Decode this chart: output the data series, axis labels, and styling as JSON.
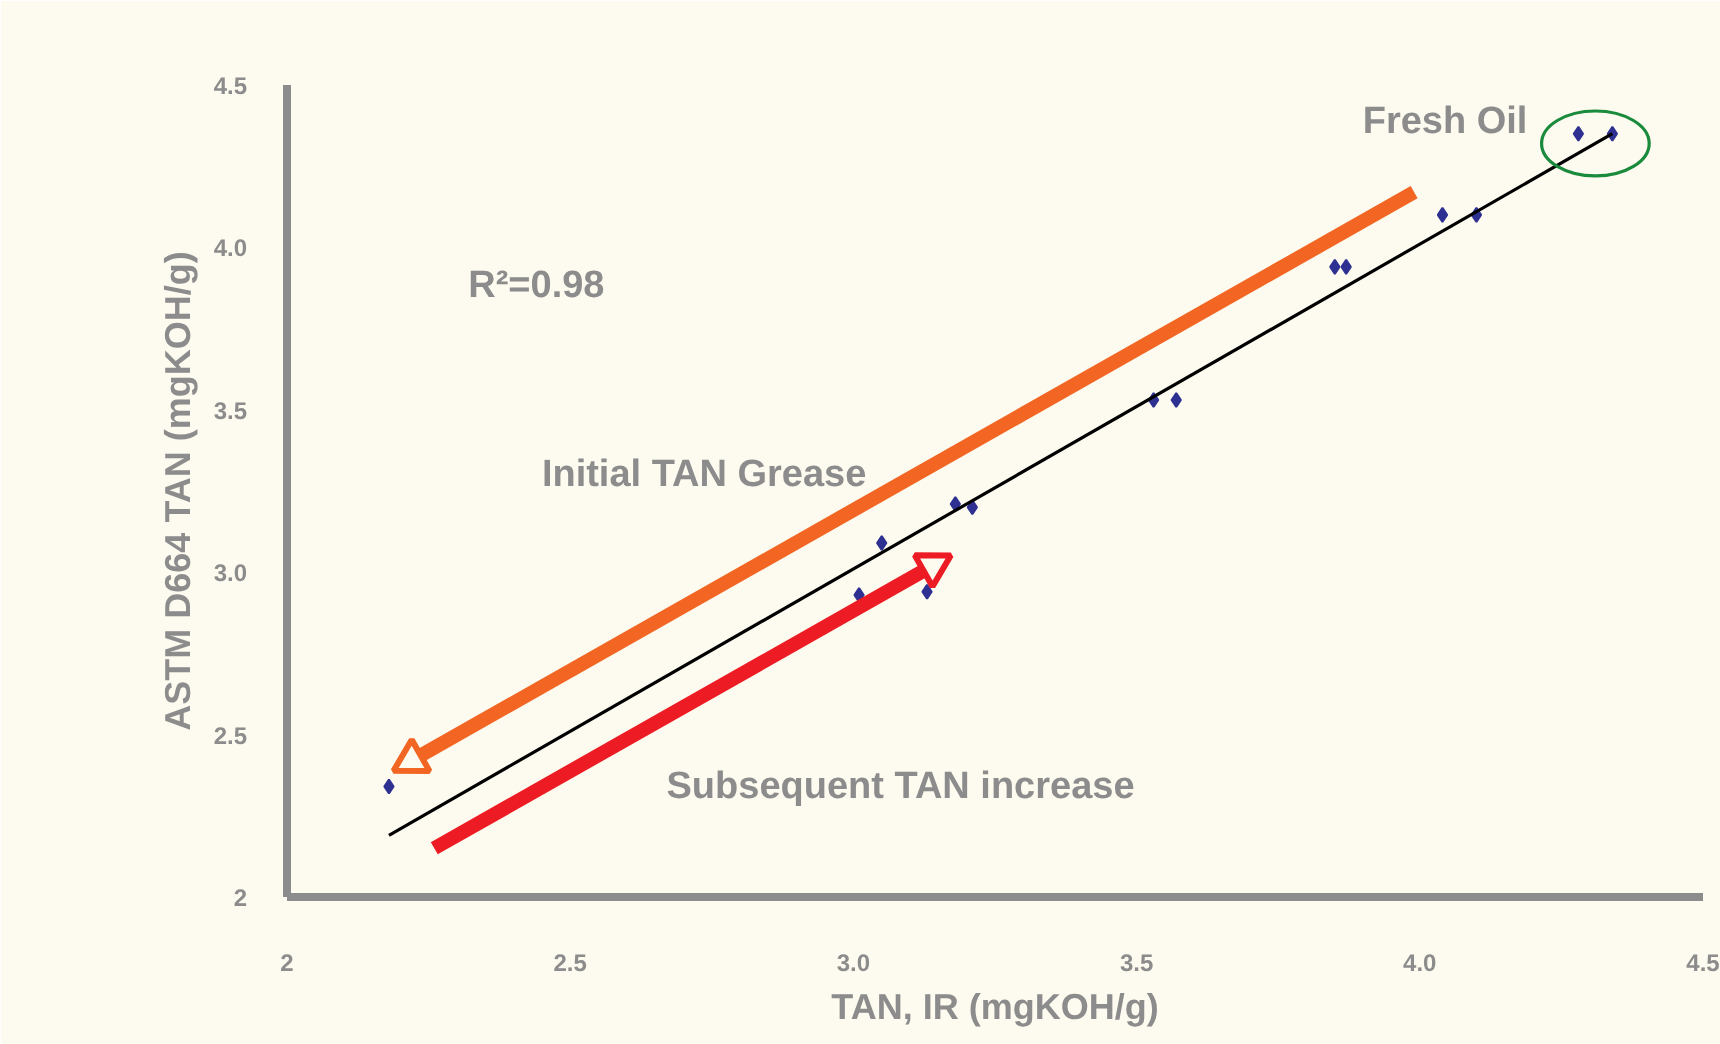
{
  "chart_data": {
    "type": "scatter",
    "xlabel": "TAN, IR (mgKOH/g)",
    "ylabel": "ASTM D664 TAN (mgKOH/g)",
    "xlim": [
      2,
      4.5
    ],
    "ylim": [
      2,
      4.5
    ],
    "xticks": [
      2,
      2.5,
      {
        "value": 3,
        "label": "3.0"
      },
      3.5,
      {
        "value": 4,
        "label": "4.0"
      },
      4.5
    ],
    "yticks": [
      2,
      2.5,
      {
        "value": 3,
        "label": "3.0"
      },
      3.5,
      {
        "value": 4,
        "label": "4.0"
      },
      4.5
    ],
    "grid": false,
    "series": [
      {
        "marker": "diamond",
        "color": "#2e3192",
        "x": [
          2.18,
          3.01,
          3.05,
          3.13,
          3.18,
          3.21,
          3.53,
          3.57,
          3.85,
          3.87,
          4.04,
          4.1,
          4.28,
          4.34
        ],
        "values": [
          2.34,
          2.93,
          3.09,
          2.94,
          3.21,
          3.2,
          3.53,
          3.53,
          3.94,
          3.94,
          4.1,
          4.1,
          4.35,
          4.35
        ]
      },
      {
        "type": "line",
        "color": "#000000",
        "x": [
          2.18,
          4.34
        ],
        "values": [
          2.19,
          4.35
        ]
      },
      {
        "type": "line",
        "marker": "triangle",
        "color": "#f26522",
        "x": [
          3.99,
          2.22
        ],
        "values": [
          4.17,
          2.42
        ]
      },
      {
        "type": "line",
        "marker": "triangle",
        "color": "#ed1c24",
        "x": [
          2.26,
          3.14
        ],
        "values": [
          2.15,
          3.02
        ]
      }
    ],
    "annotations": [
      {
        "text": "Fresh Oil",
        "x": 4.31,
        "y": 4.32
      },
      "R²=0.98",
      "Initial TAN Grease",
      "Subsequent TAN increase"
    ]
  }
}
